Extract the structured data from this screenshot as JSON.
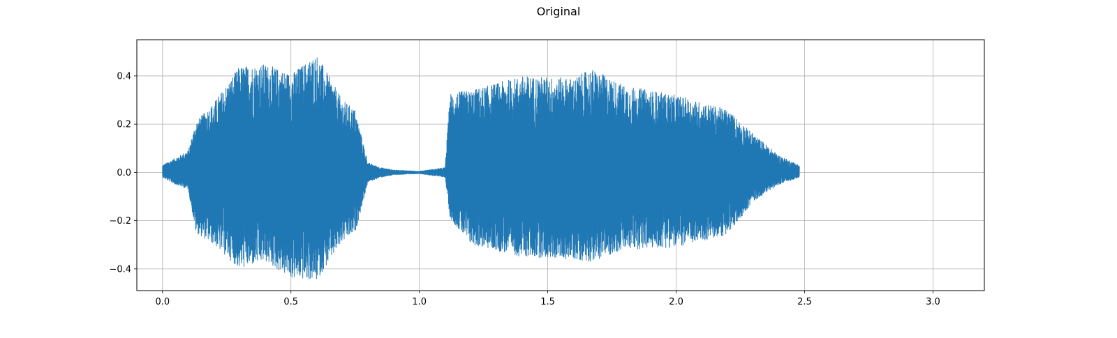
{
  "chart_data": {
    "type": "line",
    "title": "Original",
    "xlabel": "",
    "ylabel": "",
    "xlim": [
      -0.1,
      3.2
    ],
    "ylim": [
      -0.49,
      0.55
    ],
    "x_ticks": [
      0.0,
      0.5,
      1.0,
      1.5,
      2.0,
      2.5,
      3.0
    ],
    "x_tick_labels": [
      "0.0",
      "0.5",
      "1.0",
      "1.5",
      "2.0",
      "2.5",
      "3.0"
    ],
    "y_ticks": [
      -0.4,
      -0.2,
      0.0,
      0.2,
      0.4
    ],
    "y_tick_labels": [
      "−0.4",
      "−0.2",
      "0.0",
      "0.2",
      "0.4"
    ],
    "grid": true,
    "legend": "none",
    "series_color": "#1f77b4",
    "signal_duration_s": 2.48,
    "envelope": {
      "time_s": [
        0.0,
        0.05,
        0.1,
        0.13,
        0.2,
        0.3,
        0.4,
        0.5,
        0.6,
        0.7,
        0.75,
        0.8,
        0.85,
        0.9,
        1.0,
        1.1,
        1.12,
        1.2,
        1.4,
        1.6,
        1.67,
        1.8,
        2.0,
        2.2,
        2.3,
        2.4,
        2.48
      ],
      "upper_amplitude": [
        0.03,
        0.06,
        0.09,
        0.21,
        0.29,
        0.44,
        0.45,
        0.41,
        0.49,
        0.3,
        0.26,
        0.04,
        0.02,
        0.01,
        0.005,
        0.02,
        0.33,
        0.34,
        0.4,
        0.39,
        0.43,
        0.36,
        0.32,
        0.26,
        0.16,
        0.07,
        0.03
      ],
      "lower_amplitude": [
        -0.02,
        -0.05,
        -0.07,
        -0.25,
        -0.3,
        -0.4,
        -0.37,
        -0.44,
        -0.45,
        -0.29,
        -0.25,
        -0.04,
        -0.02,
        -0.01,
        -0.005,
        -0.02,
        -0.19,
        -0.3,
        -0.35,
        -0.36,
        -0.37,
        -0.32,
        -0.31,
        -0.26,
        -0.12,
        -0.05,
        -0.02
      ]
    }
  }
}
